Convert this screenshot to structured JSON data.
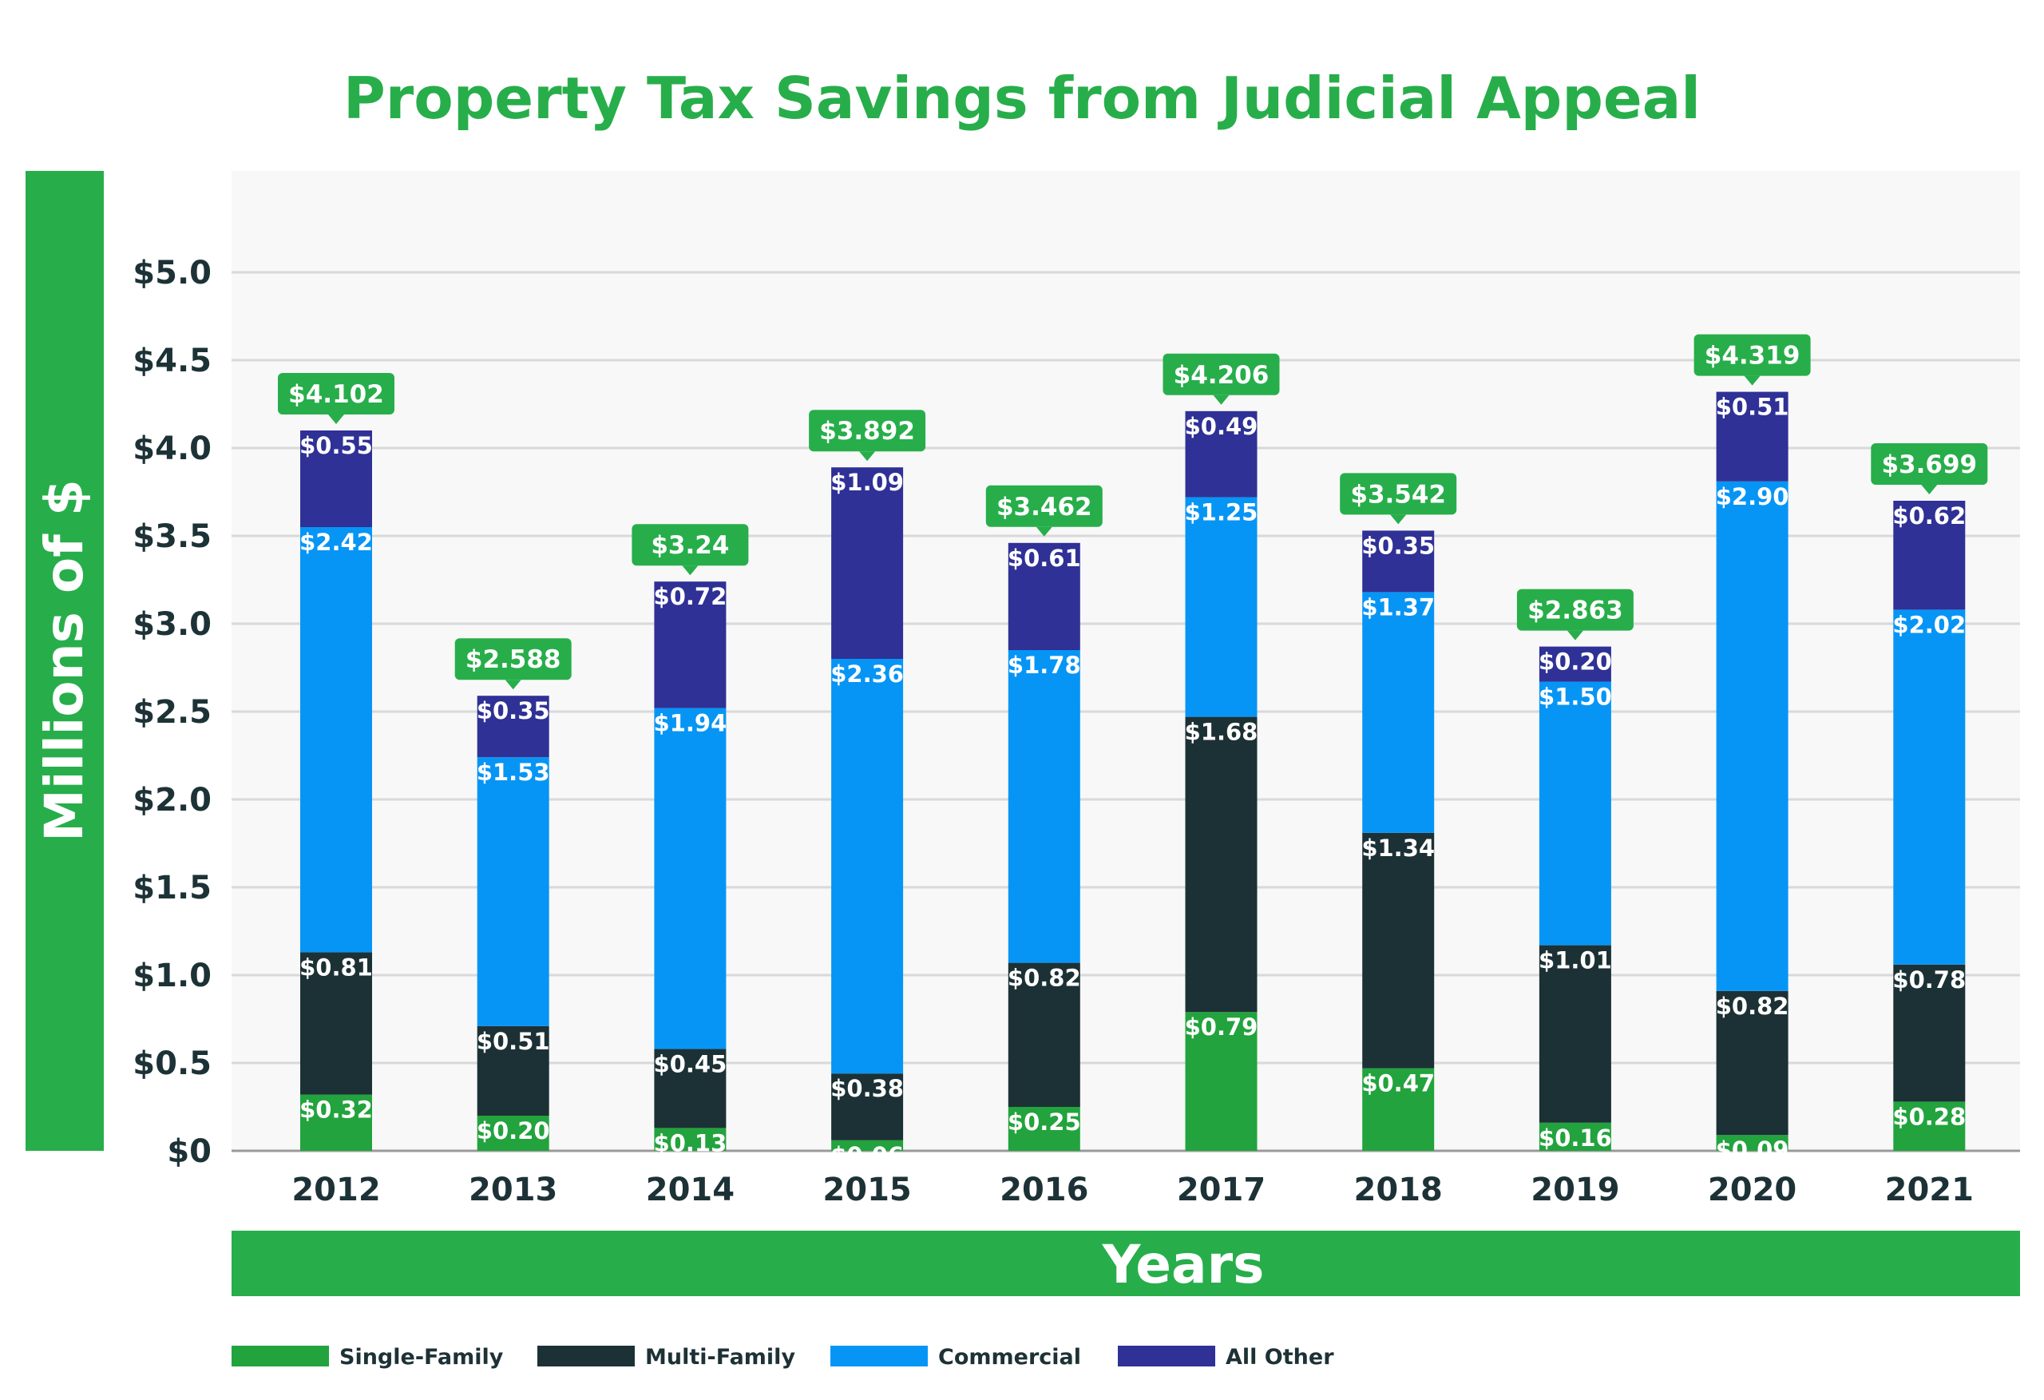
{
  "chart_data": {
    "type": "bar",
    "stacked": true,
    "title": "Property Tax Savings from Judicial Appeal",
    "xlabel": "Years",
    "ylabel": "Millions of $",
    "ylim": [
      0,
      5.5
    ],
    "yticks": [
      0,
      0.5,
      1.0,
      1.5,
      2.0,
      2.5,
      3.0,
      3.5,
      4.0,
      4.5,
      5.0
    ],
    "ytick_labels": [
      "$0",
      "$0.5",
      "$1.0",
      "$1.5",
      "$2.0",
      "$2.5",
      "$3.0",
      "$3.5",
      "$4.0",
      "$4.5",
      "$5.0"
    ],
    "grid": true,
    "legend_position": "bottom-left",
    "categories": [
      "2012",
      "2013",
      "2014",
      "2015",
      "2016",
      "2017",
      "2018",
      "2019",
      "2020",
      "2021"
    ],
    "series": [
      {
        "name": "Single-Family",
        "color": "#22a33d",
        "values": [
          0.32,
          0.2,
          0.13,
          0.06,
          0.25,
          0.79,
          0.47,
          0.16,
          0.09,
          0.28
        ],
        "labels": [
          "$0.32",
          "$0.20",
          "$0.13",
          "$0.06",
          "$0.25",
          "$0.79",
          "$0.47",
          "$0.16",
          "$0.09",
          "$0.28"
        ]
      },
      {
        "name": "Multi-Family",
        "color": "#1c3135",
        "values": [
          0.81,
          0.51,
          0.45,
          0.38,
          0.82,
          1.68,
          1.34,
          1.01,
          0.82,
          0.78
        ],
        "labels": [
          "$0.81",
          "$0.51",
          "$0.45",
          "$0.38",
          "$0.82",
          "$1.68",
          "$1.34",
          "$1.01",
          "$0.82",
          "$0.78"
        ]
      },
      {
        "name": "Commercial",
        "color": "#0795f5",
        "values": [
          2.42,
          1.53,
          1.94,
          2.36,
          1.78,
          1.25,
          1.37,
          1.5,
          2.9,
          2.02
        ],
        "labels": [
          "$2.42",
          "$1.53",
          "$1.94",
          "$2.36",
          "$1.78",
          "$1.25",
          "$1.37",
          "$1.50",
          "$2.90",
          "$2.02"
        ]
      },
      {
        "name": "All Other",
        "color": "#2f3196",
        "values": [
          0.55,
          0.35,
          0.72,
          1.09,
          0.61,
          0.49,
          0.35,
          0.2,
          0.51,
          0.62
        ],
        "labels": [
          "$0.55",
          "$0.35",
          "$0.72",
          "$1.09",
          "$0.61",
          "$0.49",
          "$0.35",
          "$0.20",
          "$0.51",
          "$0.62"
        ]
      }
    ],
    "totals": [
      4.102,
      2.588,
      3.24,
      3.892,
      3.462,
      4.206,
      3.542,
      2.863,
      4.319,
      3.699
    ],
    "total_labels": [
      "$4.102",
      "$2.588",
      "$3.24",
      "$3.892",
      "$3.462",
      "$4.206",
      "$3.542",
      "$2.863",
      "$4.319",
      "$3.699"
    ],
    "colors": {
      "accent": "#27ae4a",
      "plot_bg": "#f8f8f8",
      "grid": "#d9d9d9",
      "text": "#1d3236"
    }
  }
}
